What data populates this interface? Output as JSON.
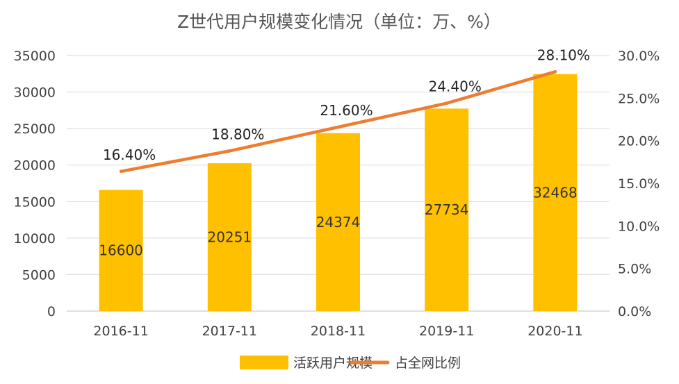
{
  "chart_data": {
    "type": "bar",
    "title": "Z世代用户规模变化情况（单位：万、%）",
    "categories": [
      "2016-11",
      "2017-11",
      "2018-11",
      "2019-11",
      "2020-11"
    ],
    "series": [
      {
        "name": "活跃用户规模",
        "type": "bar",
        "axis": "left",
        "color": "#FFC000",
        "values": [
          16600,
          20251,
          24374,
          27734,
          32468
        ],
        "labels": [
          "16600",
          "20251",
          "24374",
          "27734",
          "32468"
        ]
      },
      {
        "name": "占全网比例",
        "type": "line",
        "axis": "right",
        "color": "#ED7D31",
        "values": [
          16.4,
          18.8,
          21.6,
          24.4,
          28.1
        ],
        "labels": [
          "16.40%",
          "18.80%",
          "21.60%",
          "24.40%",
          "28.10%"
        ]
      }
    ],
    "y_left": {
      "range": [
        0,
        35000
      ],
      "ticks": [
        0,
        5000,
        10000,
        15000,
        20000,
        25000,
        30000,
        35000
      ],
      "tick_labels": [
        "0",
        "5000",
        "10000",
        "15000",
        "20000",
        "25000",
        "30000",
        "35000"
      ]
    },
    "y_right": {
      "range": [
        0,
        30
      ],
      "ticks": [
        0,
        5,
        10,
        15,
        20,
        25,
        30
      ],
      "tick_labels": [
        "0.0%",
        "5.0%",
        "10.0%",
        "15.0%",
        "20.0%",
        "25.0%",
        "30.0%"
      ]
    },
    "grid": true,
    "legend_position": "bottom"
  },
  "colors": {
    "gridline": "#D9D9D9",
    "axis": "#BFBFBF"
  }
}
